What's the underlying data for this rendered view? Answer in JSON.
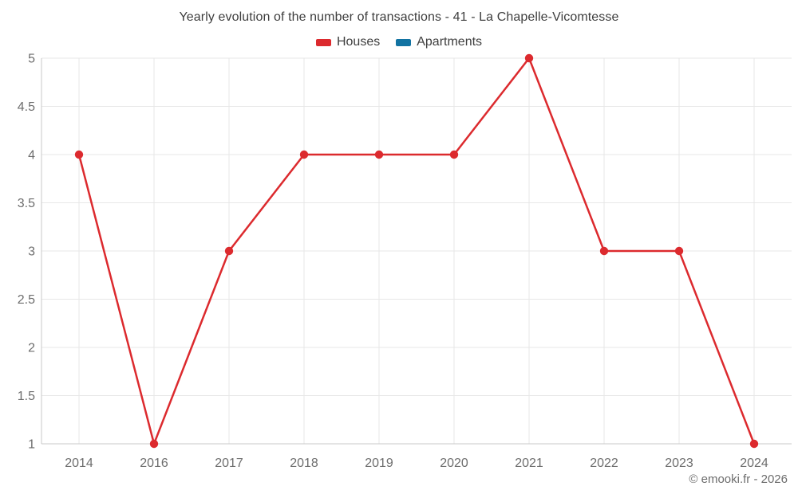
{
  "chart_data": {
    "type": "line",
    "title": "Yearly evolution of the number of transactions - 41 - La Chapelle-Vicomtesse",
    "categories": [
      "2014",
      "2016",
      "2017",
      "2018",
      "2019",
      "2020",
      "2021",
      "2022",
      "2023",
      "2024"
    ],
    "series": [
      {
        "name": "Houses",
        "color": "#dc2a2e",
        "values": [
          4,
          1,
          3,
          4,
          4,
          4,
          5,
          3,
          3,
          1
        ]
      },
      {
        "name": "Apartments",
        "color": "#1273a2",
        "values": []
      }
    ],
    "xlabel": "",
    "ylabel": "",
    "ylim": [
      1,
      5
    ],
    "y_ticks": [
      1,
      1.5,
      2,
      2.5,
      3,
      3.5,
      4,
      4.5,
      5
    ],
    "grid": true,
    "legend_position": "top",
    "marker": "circle"
  },
  "footer": {
    "copyright": "© emooki.fr - 2026"
  },
  "colors": {
    "background": "#ffffff",
    "grid": "#e7e7e7",
    "axis": "#c9c9c9",
    "tick_label": "#6d6d6d",
    "text": "#3e3e3e",
    "houses": "#dc2a2e",
    "apartments": "#1273a2"
  }
}
